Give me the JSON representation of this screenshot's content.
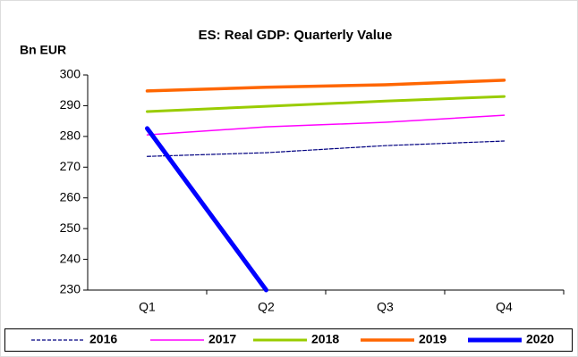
{
  "chart_data": {
    "type": "line",
    "title": "ES: Real GDP: Quarterly Value",
    "y_label": "Bn EUR",
    "categories": [
      "Q1",
      "Q2",
      "Q3",
      "Q4"
    ],
    "series": [
      {
        "name": "2016",
        "color": "#000080",
        "dash": true,
        "values": [
          273.5,
          274.7,
          277.0,
          278.5
        ]
      },
      {
        "name": "2017",
        "color": "#ff00ff",
        "dash": false,
        "values": [
          280.5,
          283.1,
          284.6,
          286.9
        ]
      },
      {
        "name": "2018",
        "color": "#99cc00",
        "dash": false,
        "values": [
          288.1,
          289.8,
          291.5,
          293.0
        ]
      },
      {
        "name": "2019",
        "color": "#ff6600",
        "dash": false,
        "values": [
          294.8,
          296.0,
          296.8,
          298.3
        ]
      },
      {
        "name": "2020",
        "color": "#0000ff",
        "dash": false,
        "values": [
          282.6,
          230,
          null,
          null
        ]
      }
    ],
    "ylim": [
      230,
      300
    ],
    "yticks": [
      230,
      240,
      250,
      260,
      270,
      280,
      290,
      300
    ],
    "legend": "bottom"
  }
}
